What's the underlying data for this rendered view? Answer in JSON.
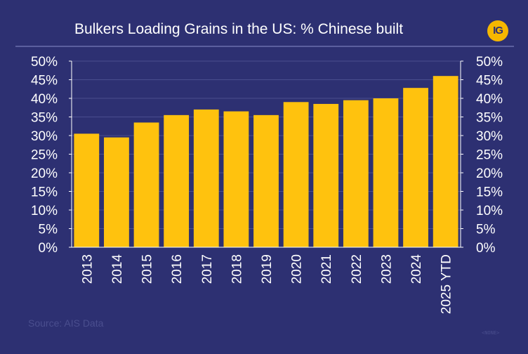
{
  "header": {
    "title": "Bulkers Loading Grains in the US: % Chinese built",
    "logo_text": "IG"
  },
  "source": "Source: AIS Data",
  "footer_tag": "<NONE>",
  "colors": {
    "background": "#2d3072",
    "bar": "#ffc20e",
    "text": "#ffffff",
    "gridline": "#4a4e8e",
    "logo": "#f5b700"
  },
  "chart_data": {
    "type": "bar",
    "title": "Bulkers Loading Grains in the US: % Chinese built",
    "categories": [
      "2013",
      "2014",
      "2015",
      "2016",
      "2017",
      "2018",
      "2019",
      "2020",
      "2021",
      "2022",
      "2023",
      "2024",
      "2025 YTD"
    ],
    "values": [
      30.5,
      29.5,
      33.5,
      35.5,
      37.0,
      36.5,
      35.5,
      39.0,
      38.5,
      39.5,
      40.0,
      42.8,
      46.0
    ],
    "ylim": [
      0,
      50
    ],
    "yticks": [
      "0%",
      "5%",
      "10%",
      "15%",
      "20%",
      "25%",
      "30%",
      "35%",
      "40%",
      "45%",
      "50%"
    ],
    "secondary_y_axis": true,
    "grid": true,
    "legend": "none"
  }
}
